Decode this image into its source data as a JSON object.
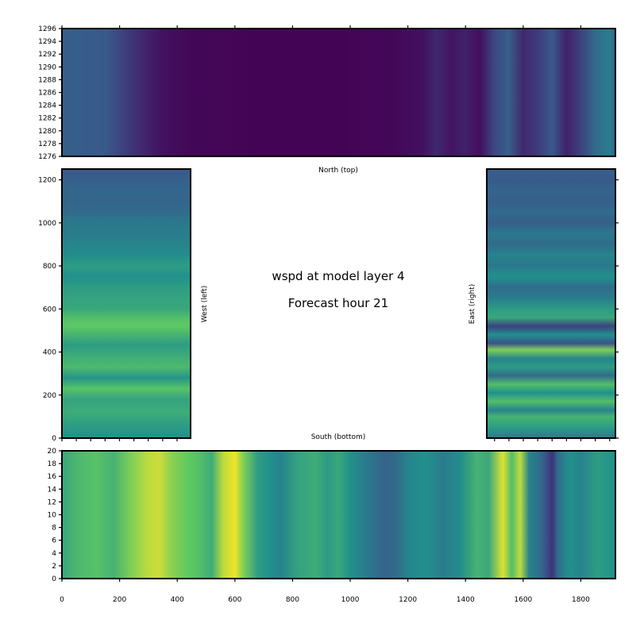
{
  "chart_data": {
    "type": "heatmap",
    "title": "wspd at model layer 4",
    "subtitle": "Forecast hour 21",
    "colormap": "viridis",
    "colors": [
      "#440154",
      "#3b528b",
      "#21918c",
      "#5ec962",
      "#fde725"
    ],
    "panels": [
      {
        "name": "North (top)",
        "xlim": [
          0,
          1920
        ],
        "ylim": [
          1276,
          1296
        ],
        "x_ticks": [],
        "y_ticks": [
          "1276",
          "1278",
          "1280",
          "1282",
          "1284",
          "1286",
          "1288",
          "1290",
          "1292",
          "1294",
          "1296"
        ],
        "profile_x": [
          0,
          150,
          250,
          350,
          450,
          700,
          950,
          1150,
          1250,
          1300,
          1350,
          1400,
          1450,
          1500,
          1550,
          1600,
          1650,
          1700,
          1750,
          1800,
          1850,
          1900,
          1920
        ],
        "profile_v": [
          0.3,
          0.28,
          0.15,
          0.05,
          0.02,
          0.01,
          0.01,
          0.02,
          0.05,
          0.12,
          0.06,
          0.1,
          0.04,
          0.22,
          0.3,
          0.12,
          0.18,
          0.28,
          0.1,
          0.2,
          0.35,
          0.42,
          0.3
        ]
      },
      {
        "name": "West (left)",
        "xlim": [
          0,
          447
        ],
        "ylim": [
          0,
          1250
        ],
        "y_ticks": [
          "0",
          "200",
          "400",
          "600",
          "800",
          "1000",
          "1200"
        ],
        "profile_x": [
          0,
          60,
          120,
          180,
          230,
          280,
          330,
          380,
          430,
          480,
          520,
          560,
          600,
          650,
          700,
          750,
          800,
          850,
          900,
          950,
          1000,
          1050,
          1100,
          1150,
          1200,
          1250
        ],
        "profile_v": [
          0.5,
          0.55,
          0.62,
          0.58,
          0.72,
          0.52,
          0.68,
          0.62,
          0.55,
          0.65,
          0.75,
          0.7,
          0.6,
          0.58,
          0.55,
          0.5,
          0.55,
          0.48,
          0.45,
          0.42,
          0.4,
          0.35,
          0.32,
          0.33,
          0.3,
          0.28
        ]
      },
      {
        "name": "East (right)",
        "xlim": [
          1473,
          1920
        ],
        "ylim": [
          0,
          1250
        ],
        "y_ticks": [],
        "profile_x": [
          0,
          50,
          100,
          130,
          170,
          210,
          250,
          290,
          330,
          370,
          410,
          440,
          480,
          520,
          560,
          600,
          650,
          700,
          750,
          800,
          850,
          900,
          950,
          1000,
          1050,
          1100,
          1150,
          1200,
          1250
        ],
        "profile_v": [
          0.4,
          0.55,
          0.65,
          0.45,
          0.7,
          0.5,
          0.7,
          0.35,
          0.55,
          0.45,
          0.8,
          0.25,
          0.5,
          0.2,
          0.6,
          0.55,
          0.42,
          0.35,
          0.5,
          0.4,
          0.45,
          0.35,
          0.4,
          0.3,
          0.35,
          0.3,
          0.32,
          0.28,
          0.3
        ]
      },
      {
        "name": "South (bottom)",
        "xlim": [
          0,
          1920
        ],
        "ylim": [
          0,
          20
        ],
        "x_ticks": [
          "0",
          "200",
          "400",
          "600",
          "800",
          "1000",
          "1200",
          "1400",
          "1600",
          "1800"
        ],
        "y_ticks": [
          "0",
          "2",
          "4",
          "6",
          "8",
          "10",
          "12",
          "14",
          "16",
          "18",
          "20"
        ],
        "profile_x": [
          0,
          60,
          120,
          180,
          240,
          300,
          340,
          380,
          440,
          480,
          520,
          560,
          600,
          630,
          680,
          720,
          760,
          820,
          880,
          920,
          960,
          1000,
          1060,
          1120,
          1160,
          1200,
          1260,
          1320,
          1380,
          1440,
          1480,
          1530,
          1560,
          1590,
          1620,
          1660,
          1680,
          1700,
          1720,
          1760,
          1800,
          1860,
          1920
        ],
        "profile_v": [
          0.6,
          0.68,
          0.72,
          0.65,
          0.8,
          0.9,
          0.92,
          0.82,
          0.75,
          0.7,
          0.62,
          0.9,
          0.98,
          0.8,
          0.55,
          0.5,
          0.45,
          0.58,
          0.62,
          0.55,
          0.6,
          0.5,
          0.4,
          0.32,
          0.35,
          0.45,
          0.5,
          0.42,
          0.48,
          0.65,
          0.6,
          0.95,
          0.7,
          0.9,
          0.45,
          0.35,
          0.25,
          0.15,
          0.35,
          0.5,
          0.45,
          0.55,
          0.5
        ]
      }
    ]
  }
}
